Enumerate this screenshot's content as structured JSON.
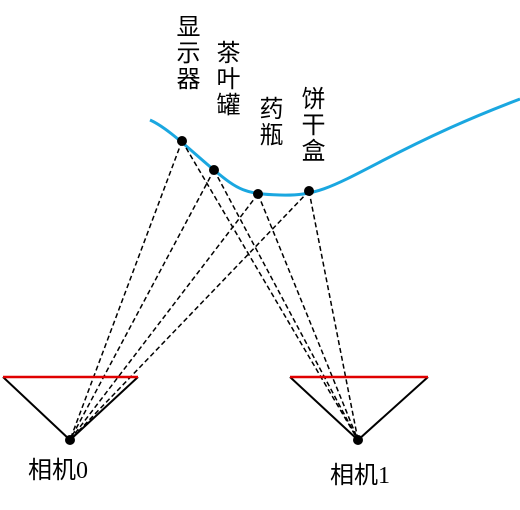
{
  "objects": [
    {
      "label": "显示器"
    },
    {
      "label": "茶叶罐"
    },
    {
      "label": "药瓶"
    },
    {
      "label": "饼干盒"
    }
  ],
  "cameras": [
    {
      "label": "相机0"
    },
    {
      "label": "相机1"
    }
  ]
}
